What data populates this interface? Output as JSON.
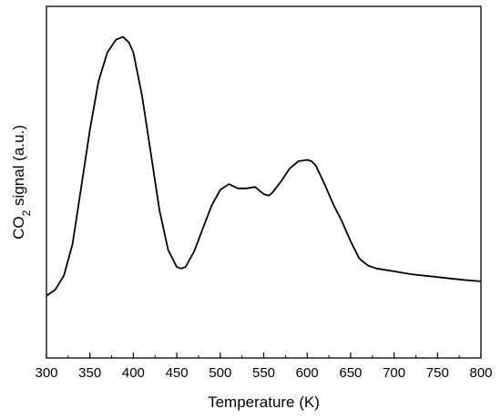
{
  "chart_data": {
    "type": "line",
    "xlabel": "Temperature (K)",
    "ylabel": {
      "prefix": "CO",
      "subscript": "2",
      "suffix": " signal (a.u.)"
    },
    "xlim": [
      300,
      800
    ],
    "ylim": [
      0,
      100
    ],
    "xticks": [
      300,
      350,
      400,
      450,
      500,
      550,
      600,
      650,
      700,
      750,
      800
    ],
    "grid": false,
    "series": [
      {
        "color": "#000000",
        "x": [
          300,
          310,
          320,
          330,
          340,
          350,
          360,
          370,
          380,
          388,
          395,
          400,
          410,
          420,
          430,
          440,
          450,
          455,
          460,
          470,
          480,
          490,
          500,
          510,
          520,
          530,
          540,
          550,
          556,
          560,
          570,
          580,
          590,
          600,
          605,
          610,
          620,
          630,
          640,
          650,
          660,
          670,
          680,
          700,
          720,
          750,
          780,
          800
        ],
        "y": [
          10,
          12,
          17,
          28,
          48,
          68,
          85,
          95,
          99.5,
          100.5,
          98.5,
          95,
          80,
          60,
          40,
          26,
          20,
          19.5,
          20,
          25.5,
          33.5,
          41.5,
          47,
          49,
          47.5,
          47.5,
          48,
          45.5,
          45,
          46,
          50,
          54.5,
          57,
          57.5,
          57,
          55.5,
          49,
          42,
          36,
          29,
          23,
          20.5,
          19.5,
          18.5,
          17.5,
          16.5,
          15.5,
          15
        ]
      }
    ]
  }
}
